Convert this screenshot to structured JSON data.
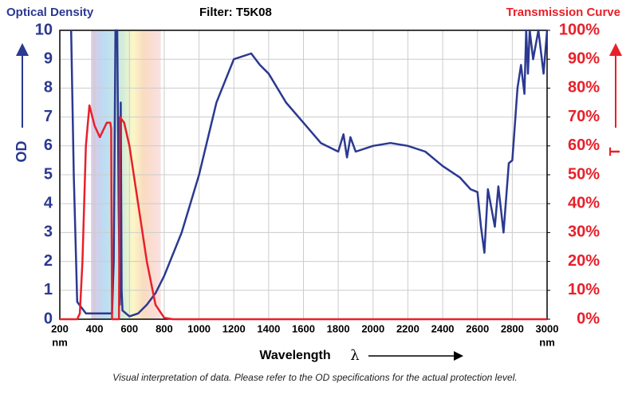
{
  "chart_data": {
    "type": "line",
    "title": "Filter: T5K08",
    "y_title": "Optical Density",
    "y2_title": "Transmission Curve",
    "ylabel": "OD",
    "y2label": "T",
    "xlabel": "Wavelength",
    "xlabel_symbol": "λ",
    "x_unit": "nm",
    "footnote": "Visual interpretation of data. Please refer to the OD specifications for the actual protection level.",
    "xlim": [
      200,
      3000
    ],
    "xticks": [
      200,
      400,
      600,
      800,
      1000,
      1200,
      1400,
      1600,
      1800,
      2000,
      2200,
      2400,
      2600,
      2800,
      3000
    ],
    "ylim": [
      0,
      10
    ],
    "yticks": [
      0,
      1,
      2,
      3,
      4,
      5,
      6,
      7,
      8,
      9,
      10
    ],
    "y2lim": [
      0,
      100
    ],
    "y2ticks": [
      {
        "value": 0,
        "label": "0%"
      },
      {
        "value": 10,
        "label": "10%"
      },
      {
        "value": 20,
        "label": "20%"
      },
      {
        "value": 30,
        "label": "30%"
      },
      {
        "value": 40,
        "label": "40%"
      },
      {
        "value": 50,
        "label": "50%"
      },
      {
        "value": 60,
        "label": "60%"
      },
      {
        "value": 70,
        "label": "70%"
      },
      {
        "value": 80,
        "label": "80%"
      },
      {
        "value": 90,
        "label": "90%"
      },
      {
        "value": 100,
        "label": "100%"
      }
    ],
    "grid": true,
    "series": [
      {
        "name": "Optical Density",
        "color": "#2b3990",
        "axis": "y",
        "x": [
          265,
          280,
          300,
          350,
          400,
          450,
          500,
          510,
          520,
          530,
          538,
          545,
          550,
          555,
          560,
          600,
          650,
          700,
          750,
          800,
          900,
          1000,
          1100,
          1200,
          1300,
          1350,
          1400,
          1500,
          1600,
          1700,
          1800,
          1830,
          1850,
          1870,
          1900,
          2000,
          2100,
          2200,
          2300,
          2400,
          2500,
          2560,
          2600,
          2620,
          2640,
          2660,
          2700,
          2720,
          2750,
          2780,
          2800,
          2830,
          2850,
          2870,
          2880,
          2890,
          2900,
          2920,
          2950,
          2980,
          3000
        ],
        "values": [
          10,
          5,
          0.6,
          0.2,
          0.2,
          0.2,
          0.2,
          2,
          10,
          10,
          4,
          0.5,
          7.5,
          1,
          0.3,
          0.1,
          0.2,
          0.5,
          0.9,
          1.5,
          3,
          5,
          7.5,
          9,
          9.2,
          8.8,
          8.5,
          7.5,
          6.8,
          6.1,
          5.8,
          6.4,
          5.6,
          6.3,
          5.8,
          6.0,
          6.1,
          6.0,
          5.8,
          5.3,
          4.9,
          4.5,
          4.4,
          3.2,
          2.3,
          4.5,
          3.2,
          4.6,
          3.0,
          5.4,
          5.5,
          8.0,
          8.8,
          7.8,
          10,
          8.5,
          10,
          9.0,
          10,
          8.5,
          10
        ]
      },
      {
        "name": "Transmission Curve",
        "color": "#e8202a",
        "axis": "y2",
        "x": [
          200,
          300,
          315,
          330,
          350,
          370,
          400,
          430,
          470,
          490,
          495,
          500,
          540,
          545,
          570,
          600,
          650,
          700,
          750,
          800,
          850,
          3000
        ],
        "values": [
          0,
          0,
          2,
          20,
          60,
          74,
          67,
          63,
          68,
          68,
          66,
          0,
          0,
          70,
          68,
          60,
          40,
          20,
          5,
          0.5,
          0,
          0
        ]
      }
    ]
  }
}
